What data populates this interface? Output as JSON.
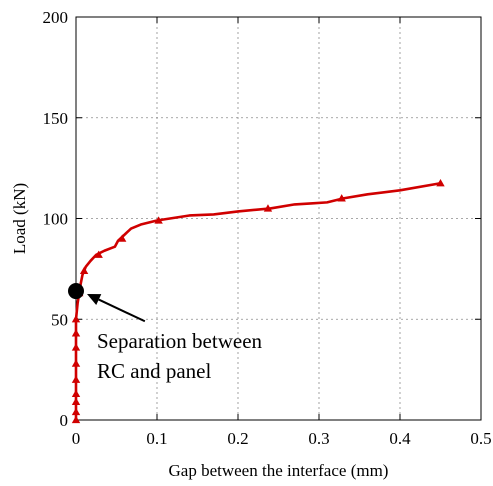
{
  "chart_data": {
    "type": "line",
    "title": "",
    "xlabel": "Gap between the interface (mm)",
    "ylabel": "Load (kN)",
    "xlim": [
      0,
      0.5
    ],
    "ylim": [
      0,
      200
    ],
    "xticks": [
      "0",
      "0.1",
      "0.2",
      "0.3",
      "0.4",
      "0.5"
    ],
    "yticks": [
      "0",
      "50",
      "100",
      "150",
      "200"
    ],
    "grid": true,
    "series_color": "#d00000",
    "series": [
      {
        "line": [
          [
            0.0,
            0
          ],
          [
            0.0,
            5
          ],
          [
            0.0,
            12
          ],
          [
            0.0,
            25
          ],
          [
            0.0,
            40
          ],
          [
            0.0,
            50
          ],
          [
            0.002,
            58
          ],
          [
            0.004,
            63
          ],
          [
            0.006,
            68
          ],
          [
            0.008,
            72
          ],
          [
            0.012,
            76
          ],
          [
            0.018,
            79
          ],
          [
            0.025,
            82
          ],
          [
            0.035,
            84
          ],
          [
            0.048,
            86
          ],
          [
            0.052,
            89
          ],
          [
            0.06,
            92
          ],
          [
            0.068,
            95
          ],
          [
            0.08,
            97
          ],
          [
            0.1,
            99
          ],
          [
            0.14,
            101.5
          ],
          [
            0.17,
            102
          ],
          [
            0.2,
            103.5
          ],
          [
            0.24,
            105
          ],
          [
            0.27,
            107
          ],
          [
            0.29,
            107.5
          ],
          [
            0.31,
            108
          ],
          [
            0.33,
            110
          ],
          [
            0.36,
            112
          ],
          [
            0.4,
            114
          ],
          [
            0.45,
            117.5
          ]
        ],
        "markers": [
          [
            0.0,
            0
          ],
          [
            0.0,
            4
          ],
          [
            0.0,
            9
          ],
          [
            0.0,
            13
          ],
          [
            0.0,
            20
          ],
          [
            0.0,
            28
          ],
          [
            0.0,
            36
          ],
          [
            0.0,
            43
          ],
          [
            0.0,
            50
          ],
          [
            0.004,
            63
          ],
          [
            0.01,
            74
          ],
          [
            0.028,
            82
          ],
          [
            0.057,
            90
          ],
          [
            0.102,
            99
          ],
          [
            0.237,
            105
          ],
          [
            0.328,
            110
          ],
          [
            0.45,
            117.5
          ]
        ]
      }
    ],
    "annotations": [
      {
        "lines": [
          "Separation between",
          "RC and panel"
        ],
        "point": [
          0.0,
          64
        ],
        "arrow_from": [
          0.085,
          49
        ]
      }
    ]
  }
}
